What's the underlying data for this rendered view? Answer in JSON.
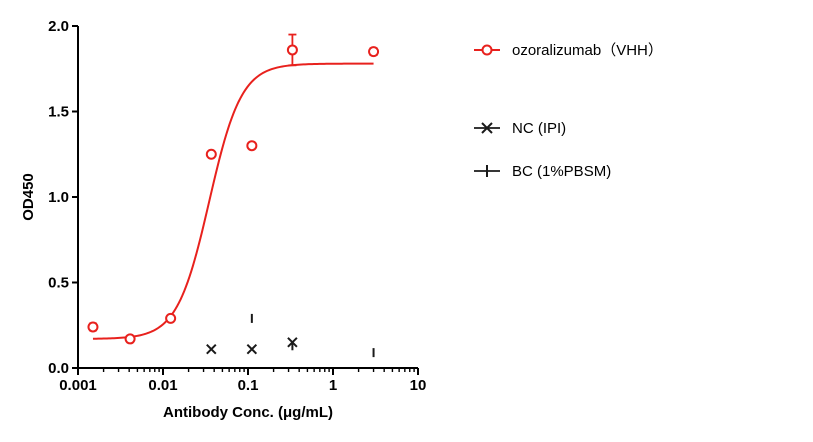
{
  "chart_data": {
    "type": "scatter",
    "xlabel": "Antibody Conc. (μg/mL)",
    "ylabel": "OD450",
    "x_scale": "log",
    "xlim": [
      0.001,
      10
    ],
    "ylim": [
      0,
      2.0
    ],
    "x_ticks": [
      0.001,
      0.01,
      0.1,
      1,
      10
    ],
    "x_tick_labels": [
      "0.001",
      "0.01",
      "0.1",
      "1",
      "10"
    ],
    "y_ticks": [
      0,
      0.5,
      1.0,
      1.5,
      2.0
    ],
    "y_tick_labels": [
      "0.0",
      "0.5",
      "1.0",
      "1.5",
      "2.0"
    ],
    "grid": false,
    "legend_position": "right",
    "series": [
      {
        "name": "ozoralizumab（VHH）",
        "color": "#e8211d",
        "marker": "circle",
        "x": [
          0.0015,
          0.0041,
          0.0123,
          0.037,
          0.111,
          0.333,
          3.0
        ],
        "y": [
          0.24,
          0.17,
          0.29,
          1.25,
          1.3,
          1.86,
          1.85
        ],
        "error": [
          0.02,
          0.01,
          0.01,
          0.0,
          0.0,
          0.09,
          0.02
        ],
        "fit": {
          "bottom": 0.17,
          "top": 1.78,
          "ec50": 0.035,
          "hill": 2.3
        }
      },
      {
        "name": "NC (IPI)",
        "color": "#1a1a1a",
        "marker": "x",
        "x": [
          0.037,
          0.111,
          0.333
        ],
        "y": [
          0.11,
          0.11,
          0.15
        ]
      },
      {
        "name": "BC (1%PBSM)",
        "color": "#1a1a1a",
        "marker": "bar",
        "x": [
          0.111,
          0.333,
          3.0
        ],
        "y": [
          0.29,
          0.13,
          0.09
        ]
      }
    ]
  }
}
